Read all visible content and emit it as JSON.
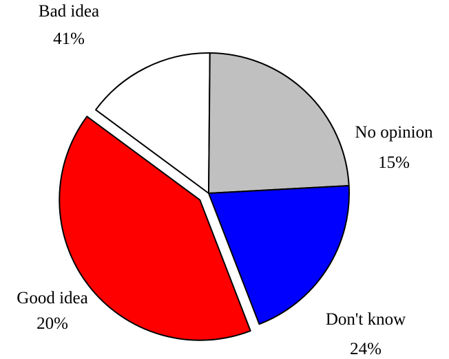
{
  "chart_data": {
    "type": "pie",
    "title": "",
    "slices": [
      {
        "label": "No opinion",
        "value": 15,
        "value_label": "15%",
        "color": "#ffffff",
        "exploded": false
      },
      {
        "label": "Don't know",
        "value": 24,
        "value_label": "24%",
        "color": "#c0c0c0",
        "exploded": false
      },
      {
        "label": "Good idea",
        "value": 20,
        "value_label": "20%",
        "color": "#0000ff",
        "exploded": false
      },
      {
        "label": "Bad idea",
        "value": 41,
        "value_label": "41%",
        "color": "#ff0000",
        "exploded": true
      }
    ],
    "start_angle_clock": "between 1 and 2 o'clock",
    "direction": "clockwise",
    "legend": "none",
    "outline_color": "#000000"
  }
}
